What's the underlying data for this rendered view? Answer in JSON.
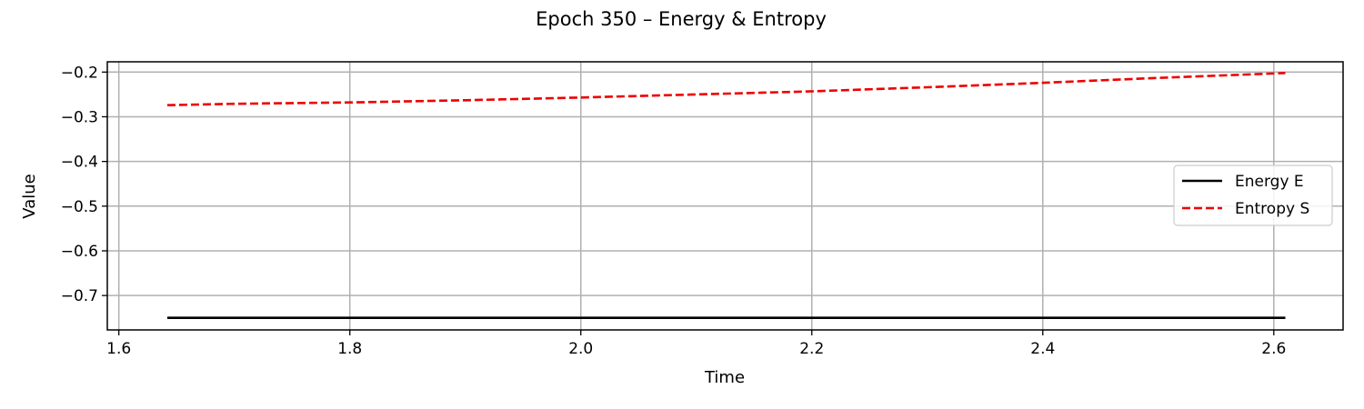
{
  "chart_data": {
    "type": "line",
    "title": "Epoch 350 – Energy & Entropy",
    "xlabel": "Time",
    "ylabel": "Value",
    "xlim": [
      1.59,
      2.66
    ],
    "ylim": [
      -0.777,
      -0.177
    ],
    "xticks": [
      1.6,
      1.8,
      2.0,
      2.2,
      2.4,
      2.6
    ],
    "xtick_labels": [
      "1.6",
      "1.8",
      "2.0",
      "2.2",
      "2.4",
      "2.6"
    ],
    "yticks": [
      -0.7,
      -0.6,
      -0.5,
      -0.4,
      -0.3,
      -0.2
    ],
    "ytick_labels": [
      "−0.7",
      "−0.6",
      "−0.5",
      "−0.4",
      "−0.3",
      "−0.2"
    ],
    "grid": true,
    "legend_position": "center-right",
    "series": [
      {
        "name": "Energy E",
        "color": "#000000",
        "style": "solid",
        "x": [
          1.642,
          1.8,
          2.0,
          2.2,
          2.4,
          2.61
        ],
        "y": [
          -0.75,
          -0.75,
          -0.75,
          -0.75,
          -0.75,
          -0.75
        ]
      },
      {
        "name": "Entropy S",
        "color": "#ee0000",
        "style": "dashed",
        "x": [
          1.642,
          1.7,
          1.8,
          1.9,
          2.0,
          2.1,
          2.2,
          2.3,
          2.4,
          2.5,
          2.61
        ],
        "y": [
          -0.274,
          -0.271,
          -0.268,
          -0.263,
          -0.257,
          -0.25,
          -0.243,
          -0.234,
          -0.224,
          -0.213,
          -0.202
        ]
      }
    ]
  }
}
